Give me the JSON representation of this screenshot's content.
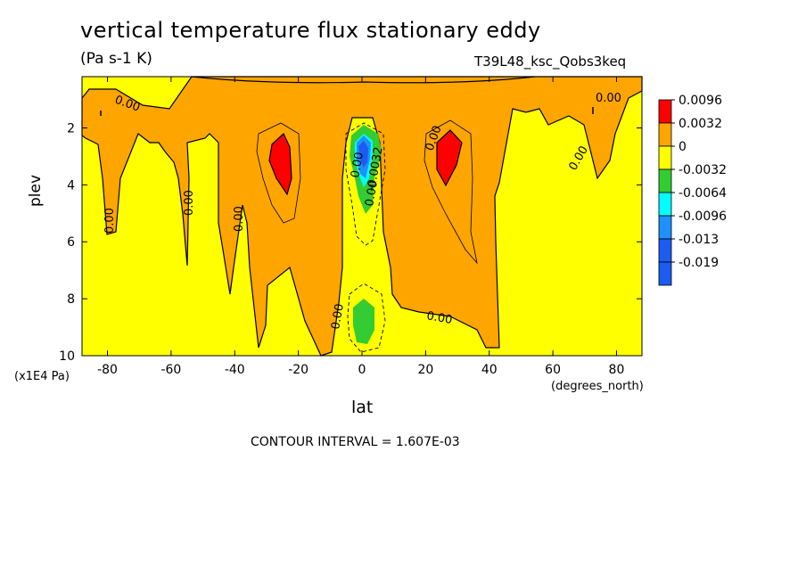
{
  "chart_data": {
    "type": "contour",
    "title": "vertical temperature flux stationary eddy",
    "units": "(Pa s-1 K)",
    "dataset": "T39L48_ksc_Qobs3keq",
    "xlabel": "lat",
    "ylabel": "plev",
    "x_units": "(degrees_north)",
    "y_units": "(x1E4 Pa)",
    "xlim": [
      -88,
      88
    ],
    "ylim": [
      10,
      0.2
    ],
    "x_ticks": [
      "-80",
      "-60",
      "-40",
      "-20",
      "0",
      "20",
      "40",
      "60",
      "80"
    ],
    "x_tick_values": [
      -80,
      -60,
      -40,
      -20,
      0,
      20,
      40,
      60,
      80
    ],
    "y_ticks": [
      "2",
      "4",
      "6",
      "8",
      "10"
    ],
    "y_tick_values": [
      2,
      4,
      6,
      8,
      10
    ],
    "contour_interval_text": "CONTOUR INTERVAL = 1.607E-03",
    "contour_labels": [
      "0.00",
      "0.00",
      "0.00",
      "0.00",
      "0.00",
      "0.00",
      "0.00",
      "0.00",
      "0.00",
      "0.00",
      "0.00",
      "-0.0032"
    ],
    "legend": {
      "placement": "right",
      "levels": [
        "0.0096",
        "0.0032",
        "0",
        "-0.0032",
        "-0.0064",
        "-0.0096",
        "-0.013",
        "-0.019"
      ],
      "colors": [
        "#ff0000",
        "#ffa500",
        "#ffff00",
        "#33cc33",
        "#00ffff",
        "#1e90ff",
        "#1c5cf0",
        "#1c5cf0"
      ]
    },
    "regions": {
      "positive_maxima": [
        {
          "lat": -25,
          "plev": 3.0,
          "value_range": "> 0.0096"
        },
        {
          "lat": 27,
          "plev": 2.8,
          "value_range": "> 0.0096"
        }
      ],
      "negative_minima": [
        {
          "lat": 0,
          "plev": 2.8,
          "value_range": "< -0.013"
        },
        {
          "lat": 0,
          "plev": 8.7,
          "value_range": "-0.0064 to -0.0032"
        }
      ]
    }
  },
  "colors": {
    "yellow": "#ffff00",
    "orange": "#ffa500",
    "red": "#ff0000",
    "green": "#33cc33",
    "cyan": "#00ffff",
    "blue": "#1e90ff",
    "darkblue": "#1c5cf0"
  }
}
